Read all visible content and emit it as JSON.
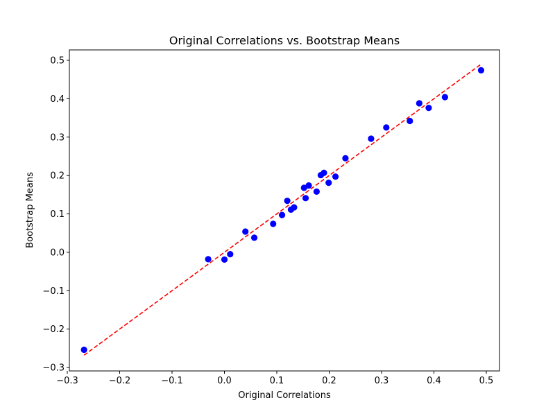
{
  "chart_data": {
    "type": "scatter",
    "title": "Original Correlations vs. Bootstrap Means",
    "xlabel": "Original Correlations",
    "ylabel": "Bootstrap Means",
    "xlim": [
      -0.3,
      0.5
    ],
    "ylim": [
      -0.3,
      0.5
    ],
    "x_ticks": [
      -0.3,
      -0.2,
      -0.1,
      0.0,
      0.1,
      0.2,
      0.3,
      0.4,
      0.5
    ],
    "x_tick_labels": [
      "−0.3",
      "−0.2",
      "−0.1",
      "0.0",
      "0.1",
      "0.2",
      "0.3",
      "0.4",
      "0.5"
    ],
    "y_ticks": [
      -0.3,
      -0.2,
      -0.1,
      0.0,
      0.1,
      0.2,
      0.3,
      0.4,
      0.5
    ],
    "y_tick_labels": [
      "−0.3",
      "−0.2",
      "−0.1",
      "0.0",
      "0.1",
      "0.2",
      "0.3",
      "0.4",
      "0.5"
    ],
    "grid": false,
    "series": [
      {
        "marker_color": "#0000ff",
        "x": [
          -0.268,
          -0.031,
          0.0,
          0.011,
          0.04,
          0.057,
          0.093,
          0.11,
          0.12,
          0.127,
          0.133,
          0.152,
          0.155,
          0.161,
          0.176,
          0.184,
          0.19,
          0.199,
          0.212,
          0.231,
          0.28,
          0.309,
          0.354,
          0.372,
          0.39,
          0.421,
          0.49
        ],
        "y": [
          -0.254,
          -0.018,
          -0.019,
          -0.005,
          0.054,
          0.038,
          0.074,
          0.097,
          0.134,
          0.111,
          0.117,
          0.168,
          0.141,
          0.174,
          0.158,
          0.201,
          0.207,
          0.181,
          0.197,
          0.245,
          0.296,
          0.325,
          0.342,
          0.388,
          0.376,
          0.404,
          0.474
        ]
      }
    ],
    "reference_line": {
      "x": [
        -0.268,
        0.49
      ],
      "y": [
        -0.268,
        0.49
      ],
      "color": "#ff0000",
      "style": "dashed"
    }
  }
}
